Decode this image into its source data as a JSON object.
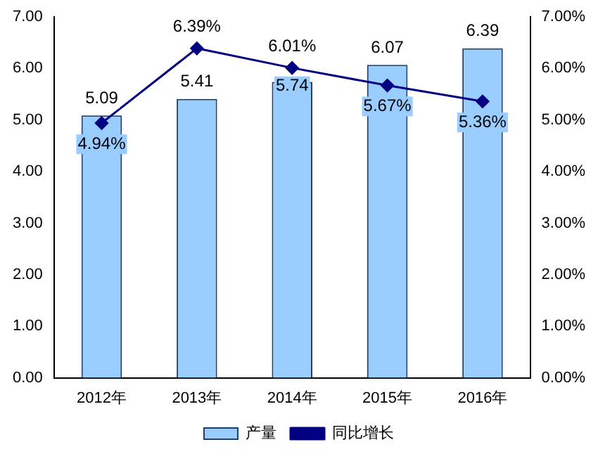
{
  "chart_data": {
    "type": "bar",
    "categories": [
      "2012年",
      "2013年",
      "2014年",
      "2015年",
      "2016年"
    ],
    "series": [
      {
        "name": "产量",
        "color": "#99ccff",
        "values": [
          5.09,
          5.41,
          5.74,
          6.07,
          6.39
        ],
        "value_labels": [
          "5.09",
          "5.41",
          "5.74",
          "6.07",
          "6.39"
        ]
      },
      {
        "name": "同比增长",
        "type": "line",
        "axis": "y2",
        "color": "#000080",
        "marker": "diamond",
        "values": [
          4.94,
          6.39,
          6.01,
          5.67,
          5.36
        ],
        "value_labels": [
          "4.94%",
          "6.39%",
          "6.01%",
          "5.67%",
          "5.36%"
        ]
      }
    ],
    "ylim": [
      0,
      7
    ],
    "yticks": [
      {
        "value": 0,
        "label": "0.00"
      },
      {
        "value": 1,
        "label": "1.00"
      },
      {
        "value": 2,
        "label": "2.00"
      },
      {
        "value": 3,
        "label": "3.00"
      },
      {
        "value": 4,
        "label": "4.00"
      },
      {
        "value": 5,
        "label": "5.00"
      },
      {
        "value": 6,
        "label": "6.00"
      },
      {
        "value": 7,
        "label": "7.00"
      }
    ],
    "y2lim": [
      0,
      7
    ],
    "y2ticks": [
      {
        "value": 0,
        "label": "0.00%"
      },
      {
        "value": 1,
        "label": "1.00%"
      },
      {
        "value": 2,
        "label": "2.00%"
      },
      {
        "value": 3,
        "label": "3.00%"
      },
      {
        "value": 4,
        "label": "4.00%"
      },
      {
        "value": 5,
        "label": "5.00%"
      },
      {
        "value": 6,
        "label": "6.00%"
      },
      {
        "value": 7,
        "label": "7.00%"
      }
    ],
    "grid": false,
    "legend": "bottom"
  }
}
